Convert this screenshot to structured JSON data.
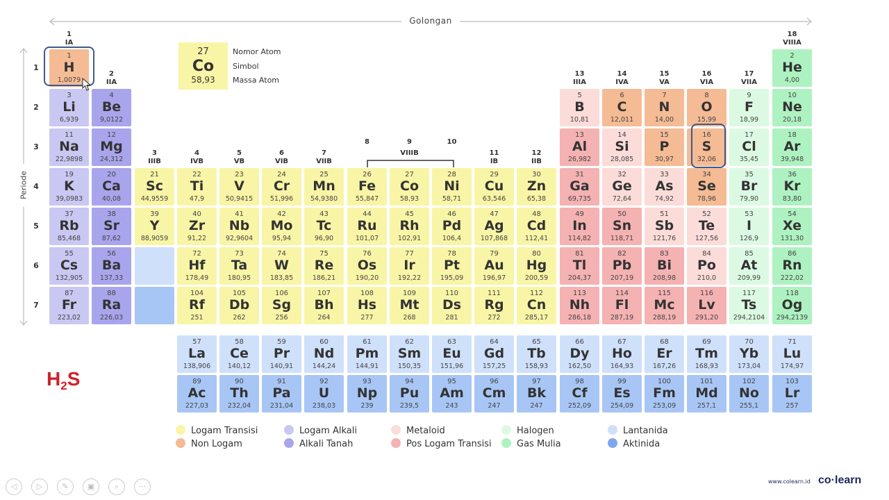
{
  "header": {
    "golongan_label": "Golongan",
    "periode_label": "Periode"
  },
  "key": {
    "number": "27",
    "symbol": "Co",
    "mass": "58,93",
    "label_number": "Nomor Atom",
    "label_symbol": "Simbol",
    "label_mass": "Massa Atom"
  },
  "groups": [
    {
      "col": 1,
      "n": "1",
      "r": "IA"
    },
    {
      "col": 2,
      "n": "2",
      "r": "IIA"
    },
    {
      "col": 3,
      "n": "3",
      "r": "IIIB"
    },
    {
      "col": 4,
      "n": "4",
      "r": "IVB"
    },
    {
      "col": 5,
      "n": "5",
      "r": "VB"
    },
    {
      "col": 6,
      "n": "6",
      "r": "VIB"
    },
    {
      "col": 7,
      "n": "7",
      "r": "VIIB"
    },
    {
      "col": 8,
      "n": "8",
      "r": ""
    },
    {
      "col": 9,
      "n": "9",
      "r": "VIIIB"
    },
    {
      "col": 10,
      "n": "10",
      "r": ""
    },
    {
      "col": 11,
      "n": "11",
      "r": "IB"
    },
    {
      "col": 12,
      "n": "12",
      "r": "IIB"
    },
    {
      "col": 13,
      "n": "13",
      "r": "IIIA"
    },
    {
      "col": 14,
      "n": "14",
      "r": "IVA"
    },
    {
      "col": 15,
      "n": "15",
      "r": "VA"
    },
    {
      "col": 16,
      "n": "16",
      "r": "VIA"
    },
    {
      "col": 17,
      "n": "17",
      "r": "VIIA"
    },
    {
      "col": 18,
      "n": "18",
      "r": "VIIIA"
    }
  ],
  "periods": [
    "1",
    "2",
    "3",
    "4",
    "5",
    "6",
    "7"
  ],
  "elements": [
    {
      "n": "1",
      "s": "H",
      "m": "1,0079",
      "c": "nonlogam",
      "row": 1,
      "col": 1
    },
    {
      "n": "2",
      "s": "He",
      "m": "4,00",
      "c": "gasmulia",
      "row": 1,
      "col": 18
    },
    {
      "n": "3",
      "s": "Li",
      "m": "6,939",
      "c": "alkali",
      "row": 2,
      "col": 1
    },
    {
      "n": "4",
      "s": "Be",
      "m": "9,0122",
      "c": "alkalitanah",
      "row": 2,
      "col": 2
    },
    {
      "n": "5",
      "s": "B",
      "m": "10,81",
      "c": "metaloid",
      "row": 2,
      "col": 13
    },
    {
      "n": "6",
      "s": "C",
      "m": "12,011",
      "c": "nonlogam",
      "row": 2,
      "col": 14
    },
    {
      "n": "7",
      "s": "N",
      "m": "14,00",
      "c": "nonlogam",
      "row": 2,
      "col": 15
    },
    {
      "n": "8",
      "s": "O",
      "m": "15,99",
      "c": "nonlogam",
      "row": 2,
      "col": 16
    },
    {
      "n": "9",
      "s": "F",
      "m": "18,99",
      "c": "halogen",
      "row": 2,
      "col": 17
    },
    {
      "n": "10",
      "s": "Ne",
      "m": "20,18",
      "c": "gasmulia",
      "row": 2,
      "col": 18
    },
    {
      "n": "11",
      "s": "Na",
      "m": "22,9898",
      "c": "alkali",
      "row": 3,
      "col": 1
    },
    {
      "n": "12",
      "s": "Mg",
      "m": "24,312",
      "c": "alkalitanah",
      "row": 3,
      "col": 2
    },
    {
      "n": "13",
      "s": "Al",
      "m": "26,982",
      "c": "poslogam",
      "row": 3,
      "col": 13
    },
    {
      "n": "14",
      "s": "Si",
      "m": "28,085",
      "c": "metaloid",
      "row": 3,
      "col": 14
    },
    {
      "n": "15",
      "s": "P",
      "m": "30,97",
      "c": "nonlogam",
      "row": 3,
      "col": 15
    },
    {
      "n": "16",
      "s": "S",
      "m": "32,06",
      "c": "nonlogam",
      "row": 3,
      "col": 16
    },
    {
      "n": "17",
      "s": "Cl",
      "m": "35,45",
      "c": "halogen",
      "row": 3,
      "col": 17
    },
    {
      "n": "18",
      "s": "Ar",
      "m": "39,948",
      "c": "gasmulia",
      "row": 3,
      "col": 18
    },
    {
      "n": "19",
      "s": "K",
      "m": "39,0983",
      "c": "alkali",
      "row": 4,
      "col": 1
    },
    {
      "n": "20",
      "s": "Ca",
      "m": "40,08",
      "c": "alkalitanah",
      "row": 4,
      "col": 2
    },
    {
      "n": "21",
      "s": "Sc",
      "m": "44,9559",
      "c": "transisi",
      "row": 4,
      "col": 3
    },
    {
      "n": "22",
      "s": "Ti",
      "m": "47,9",
      "c": "transisi",
      "row": 4,
      "col": 4
    },
    {
      "n": "23",
      "s": "V",
      "m": "50,9415",
      "c": "transisi",
      "row": 4,
      "col": 5
    },
    {
      "n": "24",
      "s": "Cr",
      "m": "51,996",
      "c": "transisi",
      "row": 4,
      "col": 6
    },
    {
      "n": "25",
      "s": "Mn",
      "m": "54,9380",
      "c": "transisi",
      "row": 4,
      "col": 7
    },
    {
      "n": "26",
      "s": "Fe",
      "m": "55,847",
      "c": "transisi",
      "row": 4,
      "col": 8
    },
    {
      "n": "27",
      "s": "Co",
      "m": "58,93",
      "c": "transisi",
      "row": 4,
      "col": 9
    },
    {
      "n": "28",
      "s": "Ni",
      "m": "58,71",
      "c": "transisi",
      "row": 4,
      "col": 10
    },
    {
      "n": "29",
      "s": "Cu",
      "m": "63,546",
      "c": "transisi",
      "row": 4,
      "col": 11
    },
    {
      "n": "30",
      "s": "Zn",
      "m": "65,38",
      "c": "transisi",
      "row": 4,
      "col": 12
    },
    {
      "n": "31",
      "s": "Ga",
      "m": "69,735",
      "c": "poslogam",
      "row": 4,
      "col": 13
    },
    {
      "n": "32",
      "s": "Ge",
      "m": "72,64",
      "c": "metaloid",
      "row": 4,
      "col": 14
    },
    {
      "n": "33",
      "s": "As",
      "m": "74,92",
      "c": "metaloid",
      "row": 4,
      "col": 15
    },
    {
      "n": "34",
      "s": "Se",
      "m": "78,96",
      "c": "nonlogam",
      "row": 4,
      "col": 16
    },
    {
      "n": "35",
      "s": "Br",
      "m": "79,90",
      "c": "halogen",
      "row": 4,
      "col": 17
    },
    {
      "n": "36",
      "s": "Kr",
      "m": "83,80",
      "c": "gasmulia",
      "row": 4,
      "col": 18
    },
    {
      "n": "37",
      "s": "Rb",
      "m": "85,468",
      "c": "alkali",
      "row": 5,
      "col": 1
    },
    {
      "n": "38",
      "s": "Sr",
      "m": "87,62",
      "c": "alkalitanah",
      "row": 5,
      "col": 2
    },
    {
      "n": "39",
      "s": "Y",
      "m": "88,9059",
      "c": "transisi",
      "row": 5,
      "col": 3
    },
    {
      "n": "40",
      "s": "Zr",
      "m": "91,22",
      "c": "transisi",
      "row": 5,
      "col": 4
    },
    {
      "n": "41",
      "s": "Nb",
      "m": "92,9604",
      "c": "transisi",
      "row": 5,
      "col": 5
    },
    {
      "n": "42",
      "s": "Mo",
      "m": "95,94",
      "c": "transisi",
      "row": 5,
      "col": 6
    },
    {
      "n": "43",
      "s": "Tc",
      "m": "96,90",
      "c": "transisi",
      "row": 5,
      "col": 7
    },
    {
      "n": "44",
      "s": "Ru",
      "m": "101,07",
      "c": "transisi",
      "row": 5,
      "col": 8
    },
    {
      "n": "45",
      "s": "Rh",
      "m": "102,91",
      "c": "transisi",
      "row": 5,
      "col": 9
    },
    {
      "n": "46",
      "s": "Pd",
      "m": "106,4",
      "c": "transisi",
      "row": 5,
      "col": 10
    },
    {
      "n": "47",
      "s": "Ag",
      "m": "107,868",
      "c": "transisi",
      "row": 5,
      "col": 11
    },
    {
      "n": "48",
      "s": "Cd",
      "m": "112,41",
      "c": "transisi",
      "row": 5,
      "col": 12
    },
    {
      "n": "49",
      "s": "In",
      "m": "114,82",
      "c": "poslogam",
      "row": 5,
      "col": 13
    },
    {
      "n": "50",
      "s": "Sn",
      "m": "118,71",
      "c": "poslogam",
      "row": 5,
      "col": 14
    },
    {
      "n": "51",
      "s": "Sb",
      "m": "121,76",
      "c": "metaloid",
      "row": 5,
      "col": 15
    },
    {
      "n": "52",
      "s": "Te",
      "m": "127,56",
      "c": "metaloid",
      "row": 5,
      "col": 16
    },
    {
      "n": "53",
      "s": "I",
      "m": "126,9",
      "c": "halogen",
      "row": 5,
      "col": 17
    },
    {
      "n": "54",
      "s": "Xe",
      "m": "131,30",
      "c": "gasmulia",
      "row": 5,
      "col": 18
    },
    {
      "n": "55",
      "s": "Cs",
      "m": "132,905",
      "c": "alkali",
      "row": 6,
      "col": 1
    },
    {
      "n": "56",
      "s": "Ba",
      "m": "137,33",
      "c": "alkalitanah",
      "row": 6,
      "col": 2
    },
    {
      "n": "",
      "s": "",
      "m": "",
      "c": "lantanida",
      "row": 6,
      "col": 3
    },
    {
      "n": "72",
      "s": "Hf",
      "m": "178,49",
      "c": "transisi",
      "row": 6,
      "col": 4
    },
    {
      "n": "73",
      "s": "Ta",
      "m": "180,95",
      "c": "transisi",
      "row": 6,
      "col": 5
    },
    {
      "n": "74",
      "s": "W",
      "m": "183,85",
      "c": "transisi",
      "row": 6,
      "col": 6
    },
    {
      "n": "75",
      "s": "Re",
      "m": "186,21",
      "c": "transisi",
      "row": 6,
      "col": 7
    },
    {
      "n": "76",
      "s": "Os",
      "m": "190,20",
      "c": "transisi",
      "row": 6,
      "col": 8
    },
    {
      "n": "77",
      "s": "Ir",
      "m": "192,22",
      "c": "transisi",
      "row": 6,
      "col": 9
    },
    {
      "n": "78",
      "s": "Pt",
      "m": "195,09",
      "c": "transisi",
      "row": 6,
      "col": 10
    },
    {
      "n": "79",
      "s": "Au",
      "m": "196,97",
      "c": "transisi",
      "row": 6,
      "col": 11
    },
    {
      "n": "80",
      "s": "Hg",
      "m": "200,59",
      "c": "transisi",
      "row": 6,
      "col": 12
    },
    {
      "n": "81",
      "s": "Tl",
      "m": "204,37",
      "c": "poslogam",
      "row": 6,
      "col": 13
    },
    {
      "n": "82",
      "s": "Pb",
      "m": "207,19",
      "c": "poslogam",
      "row": 6,
      "col": 14
    },
    {
      "n": "83",
      "s": "Bi",
      "m": "208,98",
      "c": "poslogam",
      "row": 6,
      "col": 15
    },
    {
      "n": "84",
      "s": "Po",
      "m": "210,0",
      "c": "metaloid",
      "row": 6,
      "col": 16
    },
    {
      "n": "85",
      "s": "At",
      "m": "209,99",
      "c": "halogen",
      "row": 6,
      "col": 17
    },
    {
      "n": "86",
      "s": "Rn",
      "m": "222,02",
      "c": "gasmulia",
      "row": 6,
      "col": 18
    },
    {
      "n": "87",
      "s": "Fr",
      "m": "223,02",
      "c": "alkali",
      "row": 7,
      "col": 1
    },
    {
      "n": "88",
      "s": "Ra",
      "m": "226,03",
      "c": "alkalitanah",
      "row": 7,
      "col": 2
    },
    {
      "n": "",
      "s": "",
      "m": "",
      "c": "aktinida",
      "row": 7,
      "col": 3
    },
    {
      "n": "104",
      "s": "Rf",
      "m": "251",
      "c": "transisi",
      "row": 7,
      "col": 4
    },
    {
      "n": "105",
      "s": "Db",
      "m": "262",
      "c": "transisi",
      "row": 7,
      "col": 5
    },
    {
      "n": "106",
      "s": "Sg",
      "m": "256",
      "c": "transisi",
      "row": 7,
      "col": 6
    },
    {
      "n": "107",
      "s": "Bh",
      "m": "264",
      "c": "transisi",
      "row": 7,
      "col": 7
    },
    {
      "n": "108",
      "s": "Hs",
      "m": "277",
      "c": "transisi",
      "row": 7,
      "col": 8
    },
    {
      "n": "109",
      "s": "Mt",
      "m": "268",
      "c": "transisi",
      "row": 7,
      "col": 9
    },
    {
      "n": "110",
      "s": "Ds",
      "m": "281",
      "c": "transisi",
      "row": 7,
      "col": 10
    },
    {
      "n": "111",
      "s": "Rg",
      "m": "272",
      "c": "transisi",
      "row": 7,
      "col": 11
    },
    {
      "n": "112",
      "s": "Cn",
      "m": "285,17",
      "c": "transisi",
      "row": 7,
      "col": 12
    },
    {
      "n": "113",
      "s": "Nh",
      "m": "286,18",
      "c": "poslogam",
      "row": 7,
      "col": 13
    },
    {
      "n": "114",
      "s": "Fl",
      "m": "287,19",
      "c": "poslogam",
      "row": 7,
      "col": 14
    },
    {
      "n": "115",
      "s": "Mc",
      "m": "288,19",
      "c": "poslogam",
      "row": 7,
      "col": 15
    },
    {
      "n": "116",
      "s": "Lv",
      "m": "291,20",
      "c": "poslogam",
      "row": 7,
      "col": 16
    },
    {
      "n": "117",
      "s": "Ts",
      "m": "294,2104",
      "c": "halogen",
      "row": 7,
      "col": 17
    },
    {
      "n": "118",
      "s": "Og",
      "m": "294,2139",
      "c": "gasmulia",
      "row": 7,
      "col": 18
    },
    {
      "n": "57",
      "s": "La",
      "m": "138,906",
      "c": "lantanida",
      "row": 9,
      "col": 4
    },
    {
      "n": "58",
      "s": "Ce",
      "m": "140,12",
      "c": "lantanida",
      "row": 9,
      "col": 5
    },
    {
      "n": "59",
      "s": "Pr",
      "m": "140,91",
      "c": "lantanida",
      "row": 9,
      "col": 6
    },
    {
      "n": "60",
      "s": "Nd",
      "m": "144,24",
      "c": "lantanida",
      "row": 9,
      "col": 7
    },
    {
      "n": "61",
      "s": "Pm",
      "m": "144,91",
      "c": "lantanida",
      "row": 9,
      "col": 8
    },
    {
      "n": "62",
      "s": "Sm",
      "m": "150,35",
      "c": "lantanida",
      "row": 9,
      "col": 9
    },
    {
      "n": "63",
      "s": "Eu",
      "m": "151,96",
      "c": "lantanida",
      "row": 9,
      "col": 10
    },
    {
      "n": "64",
      "s": "Gd",
      "m": "157,25",
      "c": "lantanida",
      "row": 9,
      "col": 11
    },
    {
      "n": "65",
      "s": "Tb",
      "m": "158,93",
      "c": "lantanida",
      "row": 9,
      "col": 12
    },
    {
      "n": "66",
      "s": "Dy",
      "m": "162,50",
      "c": "lantanida",
      "row": 9,
      "col": 13
    },
    {
      "n": "67",
      "s": "Ho",
      "m": "164,93",
      "c": "lantanida",
      "row": 9,
      "col": 14
    },
    {
      "n": "68",
      "s": "Er",
      "m": "167,26",
      "c": "lantanida",
      "row": 9,
      "col": 15
    },
    {
      "n": "69",
      "s": "Tm",
      "m": "168,93",
      "c": "lantanida",
      "row": 9,
      "col": 16
    },
    {
      "n": "70",
      "s": "Yb",
      "m": "173,04",
      "c": "lantanida",
      "row": 9,
      "col": 17
    },
    {
      "n": "71",
      "s": "Lu",
      "m": "174,97",
      "c": "lantanida",
      "row": 9,
      "col": 18
    },
    {
      "n": "89",
      "s": "Ac",
      "m": "227,03",
      "c": "aktinida",
      "row": 10,
      "col": 4
    },
    {
      "n": "90",
      "s": "Th",
      "m": "232,04",
      "c": "aktinida",
      "row": 10,
      "col": 5
    },
    {
      "n": "91",
      "s": "Pa",
      "m": "231,04",
      "c": "aktinida",
      "row": 10,
      "col": 6
    },
    {
      "n": "92",
      "s": "U",
      "m": "238,03",
      "c": "aktinida",
      "row": 10,
      "col": 7
    },
    {
      "n": "93",
      "s": "Np",
      "m": "239",
      "c": "aktinida",
      "row": 10,
      "col": 8
    },
    {
      "n": "94",
      "s": "Pu",
      "m": "239,5",
      "c": "aktinida",
      "row": 10,
      "col": 9
    },
    {
      "n": "95",
      "s": "Am",
      "m": "243",
      "c": "aktinida",
      "row": 10,
      "col": 10
    },
    {
      "n": "96",
      "s": "Cm",
      "m": "247",
      "c": "aktinida",
      "row": 10,
      "col": 11
    },
    {
      "n": "97",
      "s": "Bk",
      "m": "247",
      "c": "aktinida",
      "row": 10,
      "col": 12
    },
    {
      "n": "98",
      "s": "Cf",
      "m": "252,09",
      "c": "aktinida",
      "row": 10,
      "col": 13
    },
    {
      "n": "99",
      "s": "Es",
      "m": "254,09",
      "c": "aktinida",
      "row": 10,
      "col": 14
    },
    {
      "n": "100",
      "s": "Fm",
      "m": "253,09",
      "c": "aktinida",
      "row": 10,
      "col": 15
    },
    {
      "n": "101",
      "s": "Md",
      "m": "257,1",
      "c": "aktinida",
      "row": 10,
      "col": 16
    },
    {
      "n": "102",
      "s": "No",
      "m": "255,1",
      "c": "aktinida",
      "row": 10,
      "col": 17
    },
    {
      "n": "103",
      "s": "Lr",
      "m": "257",
      "c": "aktinida",
      "row": 10,
      "col": 18
    }
  ],
  "formula": {
    "main": "H",
    "sub": "2",
    "tail": "S",
    "color": "#d0202a"
  },
  "legend": [
    {
      "label": "Logam Transisi",
      "color": "#f9f5a6"
    },
    {
      "label": "Non Logam",
      "color": "#f4bb94"
    },
    {
      "label": "Logam Alkali",
      "color": "#c9c8f2"
    },
    {
      "label": "Alkali Tanah",
      "color": "#a9a5ec"
    },
    {
      "label": "Metaloid",
      "color": "#fbdcd9"
    },
    {
      "label": "Pos Logam Transisi",
      "color": "#f5b2b2"
    },
    {
      "label": "Halogen",
      "color": "#dcfae3"
    },
    {
      "label": "Gas Mulia",
      "color": "#aef2c1"
    },
    {
      "label": "Lantanida",
      "color": "#cfe0fa"
    },
    {
      "label": "Aktinida",
      "color": "#7fa7ee"
    }
  ],
  "highlight_color": "#3d5a8c",
  "footer": {
    "url": "www.colearn.id",
    "brand": "co·learn"
  },
  "controls": [
    {
      "name": "prev-icon",
      "glyph": "◁"
    },
    {
      "name": "next-icon",
      "glyph": "▷"
    },
    {
      "name": "pen-icon",
      "glyph": "✎"
    },
    {
      "name": "slides-icon",
      "glyph": "▣"
    },
    {
      "name": "zoom-icon",
      "glyph": "⌕"
    },
    {
      "name": "more-icon",
      "glyph": "···"
    }
  ]
}
